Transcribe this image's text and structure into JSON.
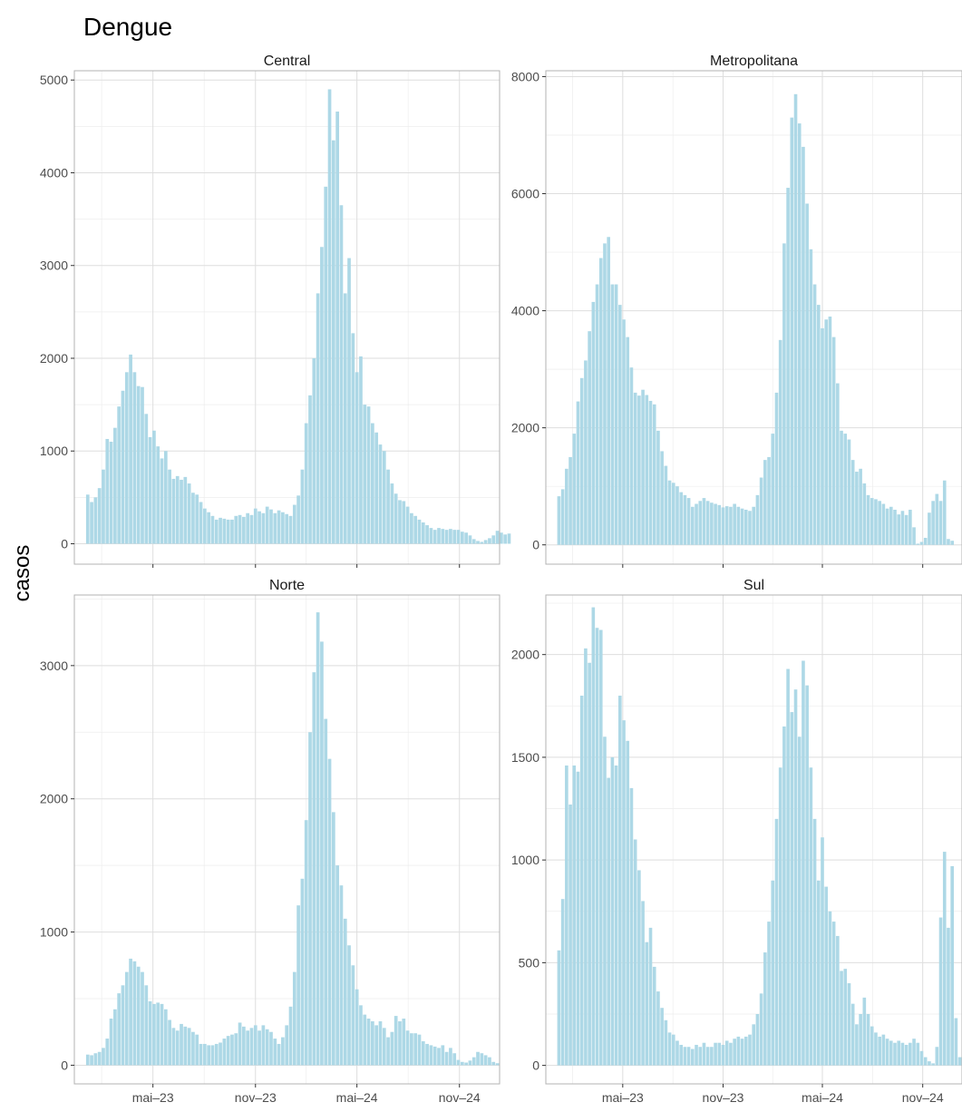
{
  "chart_data": {
    "type": "bar",
    "title": "Dengue",
    "ylabel": "casos",
    "xlabel": "",
    "bar_color": "#ADD8E6",
    "grid": true,
    "x_start": "2023-01-01",
    "bin_days": 7,
    "x_range": [
      "2022-12-11",
      "2025-01-12"
    ],
    "x_tick_labels": [
      "mai–23",
      "nov–23",
      "mai–24",
      "nov–24"
    ],
    "x_tick_dates": [
      "2023-05-01",
      "2023-11-01",
      "2024-05-01",
      "2024-11-01"
    ],
    "panels": [
      {
        "name": "Central",
        "ylim": [
          -220,
          5100
        ],
        "y_ticks": [
          0,
          1000,
          2000,
          3000,
          4000,
          5000
        ],
        "values": [
          530,
          450,
          500,
          600,
          800,
          1130,
          1100,
          1250,
          1480,
          1650,
          1850,
          2040,
          1850,
          1700,
          1690,
          1400,
          1150,
          1220,
          1050,
          920,
          1000,
          800,
          700,
          730,
          690,
          720,
          650,
          550,
          530,
          450,
          380,
          340,
          300,
          260,
          280,
          270,
          260,
          260,
          300,
          310,
          290,
          330,
          310,
          380,
          350,
          330,
          400,
          370,
          330,
          360,
          340,
          320,
          300,
          420,
          520,
          800,
          1300,
          1600,
          2000,
          2700,
          3200,
          3850,
          4900,
          4350,
          4660,
          3650,
          2700,
          3080,
          2270,
          1850,
          2020,
          1500,
          1480,
          1300,
          1200,
          1070,
          1000,
          800,
          650,
          540,
          470,
          460,
          400,
          330,
          300,
          260,
          230,
          200,
          170,
          150,
          170,
          160,
          150,
          160,
          150,
          150,
          130,
          120,
          90,
          50,
          30,
          20,
          40,
          60,
          90,
          140,
          120,
          100,
          110
        ]
      },
      {
        "name": "Metropolitana",
        "ylim": [
          -330,
          8100
        ],
        "y_ticks": [
          0,
          2000,
          4000,
          6000,
          8000
        ],
        "values": [
          830,
          950,
          1300,
          1500,
          1900,
          2450,
          2850,
          3150,
          3650,
          4150,
          4450,
          4900,
          5150,
          5260,
          4450,
          4450,
          4100,
          3850,
          3550,
          3030,
          2600,
          2550,
          2650,
          2560,
          2460,
          2400,
          1950,
          1600,
          1350,
          1100,
          1060,
          1000,
          900,
          850,
          800,
          650,
          700,
          750,
          800,
          750,
          720,
          700,
          680,
          640,
          660,
          650,
          700,
          650,
          620,
          600,
          580,
          650,
          850,
          1150,
          1450,
          1500,
          1900,
          2600,
          3500,
          5150,
          6100,
          7300,
          7700,
          7200,
          6800,
          5830,
          5050,
          4450,
          4100,
          3700,
          3850,
          3900,
          3550,
          2760,
          1950,
          1900,
          1800,
          1450,
          1250,
          1300,
          1050,
          850,
          800,
          780,
          750,
          700,
          620,
          650,
          600,
          520,
          580,
          510,
          600,
          300,
          20,
          50,
          120,
          550,
          750,
          870,
          750,
          1100,
          100,
          70
        ]
      },
      {
        "name": "Norte",
        "ylim": [
          -140,
          3530
        ],
        "y_ticks": [
          0,
          1000,
          2000,
          3000
        ],
        "values": [
          80,
          75,
          90,
          100,
          130,
          200,
          350,
          420,
          540,
          600,
          700,
          800,
          780,
          740,
          700,
          600,
          480,
          460,
          470,
          460,
          420,
          340,
          280,
          260,
          310,
          290,
          280,
          250,
          230,
          160,
          160,
          150,
          150,
          160,
          170,
          200,
          220,
          230,
          240,
          320,
          290,
          260,
          280,
          300,
          260,
          300,
          270,
          250,
          200,
          160,
          210,
          300,
          440,
          700,
          1200,
          1400,
          1840,
          2500,
          2950,
          3400,
          3180,
          2600,
          2300,
          1900,
          1500,
          1350,
          1100,
          900,
          750,
          570,
          450,
          380,
          350,
          330,
          300,
          330,
          280,
          210,
          250,
          370,
          330,
          350,
          260,
          240,
          240,
          230,
          180,
          160,
          150,
          140,
          130,
          150,
          100,
          130,
          90,
          40,
          25,
          20,
          35,
          60,
          100,
          90,
          75,
          60,
          25,
          15
        ]
      },
      {
        "name": "Sul",
        "ylim": [
          -90,
          2290
        ],
        "y_ticks": [
          0,
          500,
          1000,
          1500,
          2000
        ],
        "values": [
          560,
          810,
          1460,
          1270,
          1460,
          1430,
          1800,
          2030,
          1960,
          2230,
          2130,
          2120,
          1600,
          1400,
          1500,
          1460,
          1800,
          1680,
          1580,
          1350,
          1100,
          950,
          800,
          600,
          670,
          480,
          360,
          280,
          220,
          160,
          150,
          120,
          100,
          90,
          90,
          80,
          100,
          90,
          110,
          90,
          90,
          110,
          110,
          100,
          120,
          110,
          130,
          140,
          130,
          140,
          150,
          200,
          250,
          350,
          550,
          700,
          900,
          1200,
          1450,
          1650,
          1930,
          1720,
          1830,
          1600,
          1970,
          1850,
          1450,
          1200,
          900,
          1110,
          870,
          750,
          700,
          630,
          460,
          470,
          400,
          300,
          200,
          250,
          330,
          250,
          190,
          160,
          140,
          150,
          130,
          120,
          110,
          120,
          110,
          100,
          110,
          130,
          110,
          70,
          40,
          20,
          10,
          90,
          720,
          1040,
          670,
          970,
          230,
          40
        ]
      }
    ]
  }
}
